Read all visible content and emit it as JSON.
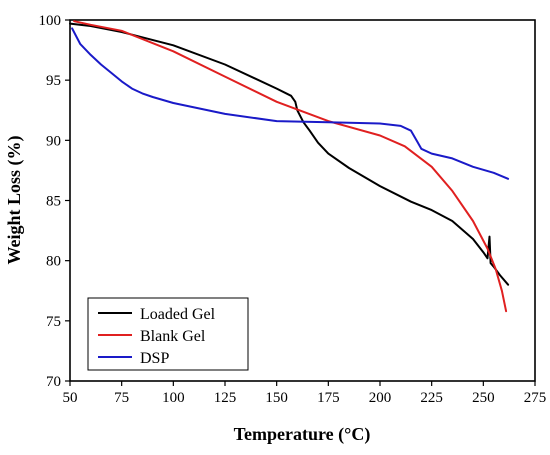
{
  "chart_data": {
    "type": "line",
    "title": "",
    "xlabel": "Temperature (°C)",
    "ylabel": "Weight Loss (%)",
    "xlim": [
      50,
      275
    ],
    "ylim": [
      70,
      100
    ],
    "x_ticks": [
      50,
      75,
      100,
      125,
      150,
      175,
      200,
      225,
      250,
      275
    ],
    "y_ticks": [
      70,
      75,
      80,
      85,
      90,
      95,
      100
    ],
    "grid": false,
    "legend_position": "bottom-left",
    "series": [
      {
        "name": "Loaded Gel",
        "color": "#000000",
        "points": [
          [
            50,
            99.7
          ],
          [
            60,
            99.5
          ],
          [
            75,
            99.0
          ],
          [
            100,
            97.9
          ],
          [
            125,
            96.3
          ],
          [
            150,
            94.3
          ],
          [
            157,
            93.7
          ],
          [
            159,
            93.2
          ],
          [
            160,
            92.5
          ],
          [
            163,
            91.5
          ],
          [
            166,
            90.8
          ],
          [
            170,
            89.8
          ],
          [
            175,
            88.9
          ],
          [
            185,
            87.7
          ],
          [
            200,
            86.2
          ],
          [
            215,
            84.9
          ],
          [
            225,
            84.2
          ],
          [
            235,
            83.3
          ],
          [
            245,
            81.8
          ],
          [
            250,
            80.7
          ],
          [
            252,
            80.2
          ],
          [
            253,
            82.0
          ],
          [
            253.5,
            79.8
          ],
          [
            255,
            79.5
          ],
          [
            258,
            78.8
          ],
          [
            262,
            78.0
          ]
        ]
      },
      {
        "name": "Blank Gel",
        "color": "#e02020",
        "points": [
          [
            52,
            99.9
          ],
          [
            60,
            99.6
          ],
          [
            75,
            99.1
          ],
          [
            100,
            97.4
          ],
          [
            125,
            95.3
          ],
          [
            150,
            93.2
          ],
          [
            175,
            91.6
          ],
          [
            200,
            90.4
          ],
          [
            212,
            89.5
          ],
          [
            225,
            87.8
          ],
          [
            235,
            85.8
          ],
          [
            245,
            83.3
          ],
          [
            252,
            81.0
          ],
          [
            256,
            79.3
          ],
          [
            259,
            77.5
          ],
          [
            261,
            75.8
          ]
        ]
      },
      {
        "name": "DSP",
        "color": "#1a1ac8",
        "points": [
          [
            51,
            99.3
          ],
          [
            55,
            98.0
          ],
          [
            60,
            97.1
          ],
          [
            65,
            96.3
          ],
          [
            70,
            95.6
          ],
          [
            75,
            94.9
          ],
          [
            80,
            94.3
          ],
          [
            85,
            93.9
          ],
          [
            90,
            93.6
          ],
          [
            100,
            93.1
          ],
          [
            125,
            92.2
          ],
          [
            150,
            91.6
          ],
          [
            175,
            91.5
          ],
          [
            200,
            91.4
          ],
          [
            210,
            91.2
          ],
          [
            215,
            90.8
          ],
          [
            218,
            89.9
          ],
          [
            220,
            89.3
          ],
          [
            225,
            88.9
          ],
          [
            235,
            88.5
          ],
          [
            245,
            87.8
          ],
          [
            255,
            87.3
          ],
          [
            262,
            86.8
          ]
        ]
      }
    ]
  }
}
